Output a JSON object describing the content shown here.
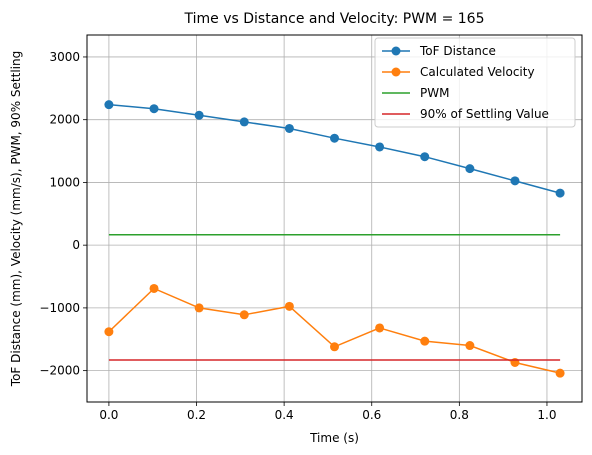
{
  "chart_data": {
    "type": "line",
    "title": "Time vs Distance and Velocity: PWM = 165",
    "xlabel": "Time (s)",
    "ylabel": "ToF Distance (mm), Velocity (mm/s), PWM, 90% Settling",
    "xlim": [
      -0.05,
      1.08
    ],
    "ylim": [
      -2500,
      3350
    ],
    "xticks": [
      0.0,
      0.2,
      0.4,
      0.6,
      0.8,
      1.0
    ],
    "xtick_labels": [
      "0.0",
      "0.2",
      "0.4",
      "0.6",
      "0.8",
      "1.0"
    ],
    "yticks": [
      -2000,
      -1000,
      0,
      1000,
      2000,
      3000
    ],
    "ytick_labels": [
      "−2000",
      "−1000",
      "0",
      "1000",
      "2000",
      "3000"
    ],
    "grid": true,
    "legend_position": "top-right",
    "series": [
      {
        "name": "ToF Distance",
        "color": "#1f77b4",
        "marker": true,
        "x": [
          0.0,
          0.103,
          0.206,
          0.309,
          0.412,
          0.515,
          0.618,
          0.721,
          0.824,
          0.927,
          1.03
        ],
        "y": [
          2240,
          2175,
          2070,
          1965,
          1860,
          1705,
          1565,
          1410,
          1220,
          1025,
          830
        ]
      },
      {
        "name": "Calculated Velocity",
        "color": "#ff7f0e",
        "marker": true,
        "x": [
          0.0,
          0.103,
          0.206,
          0.309,
          0.412,
          0.515,
          0.618,
          0.721,
          0.824,
          0.927,
          1.03
        ],
        "y": [
          -1380,
          -690,
          -1000,
          -1110,
          -975,
          -1620,
          -1320,
          -1530,
          -1600,
          -1870,
          -2040
        ]
      },
      {
        "name": "PWM",
        "color": "#2ca02c",
        "marker": false,
        "x": [
          0.0,
          1.03
        ],
        "y": [
          165,
          165
        ]
      },
      {
        "name": "90% of Settling Value",
        "color": "#d62728",
        "marker": false,
        "x": [
          0.0,
          1.03
        ],
        "y": [
          -1830,
          -1830
        ]
      }
    ]
  }
}
